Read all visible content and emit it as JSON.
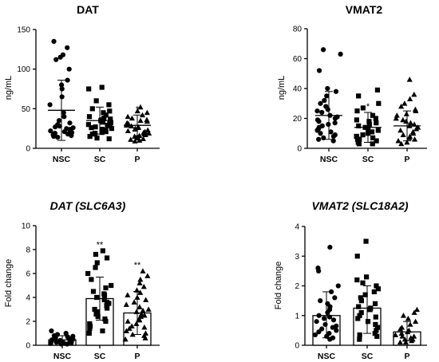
{
  "chart_data": [
    {
      "id": "dat_protein",
      "type": "scatter",
      "title": "DAT",
      "title_italic": false,
      "ylabel": "ng/mL",
      "ylim": [
        0,
        150
      ],
      "yticks": [
        0,
        50,
        100,
        150
      ],
      "categories": [
        "NSC",
        "SC",
        "P"
      ],
      "display": "mean_sd",
      "markers": [
        "circle",
        "square",
        "triangle"
      ],
      "mean": [
        48,
        35,
        29
      ],
      "sd_upper": [
        86,
        52,
        42
      ],
      "sd_lower": [
        10,
        18,
        16
      ],
      "significance": [
        "",
        "",
        "*"
      ],
      "points": [
        [
          135,
          127,
          118,
          115,
          112,
          100,
          86,
          80,
          75,
          65,
          55,
          45,
          40,
          35,
          32,
          30,
          28,
          27,
          26,
          25,
          24,
          23,
          22,
          21,
          20,
          19,
          18,
          17,
          16,
          15,
          14
        ],
        [
          77,
          75,
          60,
          55,
          50,
          47,
          45,
          42,
          40,
          38,
          37,
          36,
          35,
          34,
          33,
          32,
          31,
          30,
          29,
          28,
          27,
          26,
          25,
          24,
          23,
          22,
          21,
          20,
          19,
          18,
          15,
          13,
          12
        ],
        [
          52,
          47,
          45,
          42,
          40,
          38,
          36,
          35,
          34,
          32,
          31,
          30,
          29,
          28,
          27,
          26,
          25,
          24,
          23,
          22,
          21,
          20,
          19,
          18,
          17,
          16,
          15,
          14,
          13,
          12,
          11,
          10,
          9
        ]
      ]
    },
    {
      "id": "vmat2_protein",
      "type": "scatter",
      "title": "VMAT2",
      "title_italic": false,
      "ylabel": "ng/mL",
      "ylim": [
        0,
        80
      ],
      "yticks": [
        0,
        20,
        40,
        60,
        80
      ],
      "categories": [
        "NSC",
        "SC",
        "P"
      ],
      "display": "mean_sd",
      "markers": [
        "circle",
        "square",
        "triangle"
      ],
      "mean": [
        22,
        14,
        15
      ],
      "sd_upper": [
        38,
        24,
        25
      ],
      "sd_lower": [
        6,
        4,
        5
      ],
      "significance": [
        "",
        "*",
        ""
      ],
      "points": [
        [
          66,
          63,
          52,
          40,
          38,
          35,
          32,
          30,
          28,
          26,
          25,
          24,
          22,
          21,
          20,
          19,
          18,
          17,
          16,
          15,
          14,
          13,
          12,
          11,
          10,
          9,
          8,
          7,
          6,
          5
        ],
        [
          39,
          35,
          30,
          27,
          25,
          22,
          20,
          19,
          18,
          17,
          16,
          15,
          14,
          13,
          12,
          11,
          10,
          9,
          8,
          8,
          7,
          6,
          6,
          5,
          4,
          3,
          3
        ],
        [
          46,
          36,
          33,
          30,
          28,
          26,
          25,
          23,
          22,
          20,
          19,
          18,
          17,
          16,
          15,
          14,
          13,
          12,
          11,
          10,
          9,
          8,
          7,
          6,
          5,
          4,
          3
        ]
      ]
    },
    {
      "id": "dat_gene",
      "type": "bar",
      "title": "DAT (SLC6A3)",
      "title_italic": true,
      "ylabel": "Fold change",
      "ylim": [
        0,
        10
      ],
      "yticks": [
        0,
        2,
        4,
        6,
        8,
        10
      ],
      "categories": [
        "NSC",
        "SC",
        "P"
      ],
      "display": "bar_sd",
      "markers": [
        "circle",
        "square",
        "triangle"
      ],
      "mean": [
        0.45,
        3.9,
        2.7
      ],
      "sd_upper": [
        0.8,
        5.7,
        4.5
      ],
      "sd_lower": [
        0.1,
        2.1,
        0.9
      ],
      "significance": [
        "",
        "**",
        "**"
      ],
      "points": [
        [
          1.2,
          1.0,
          0.9,
          0.8,
          0.75,
          0.7,
          0.6,
          0.55,
          0.5,
          0.45,
          0.4,
          0.4,
          0.35,
          0.3,
          0.3,
          0.25,
          0.2,
          0.2,
          0.15,
          0.1,
          0.1
        ],
        [
          7.9,
          7.6,
          7.3,
          6.9,
          6.5,
          6.0,
          5.5,
          5.0,
          4.8,
          4.5,
          4.3,
          4.2,
          4.0,
          3.8,
          3.6,
          3.5,
          3.3,
          3.1,
          3.0,
          2.8,
          2.6,
          2.4,
          2.2,
          2.0,
          1.8,
          1.6,
          1.4,
          1.2,
          1.0
        ],
        [
          6.2,
          5.8,
          5.5,
          5.2,
          4.9,
          4.6,
          4.4,
          4.2,
          4.0,
          3.8,
          3.6,
          3.4,
          3.2,
          3.0,
          2.9,
          2.8,
          2.6,
          2.5,
          2.4,
          2.2,
          2.1,
          2.0,
          1.8,
          1.6,
          1.5,
          1.4,
          1.2,
          1.0,
          0.9,
          0.8,
          0.6,
          0.5
        ]
      ]
    },
    {
      "id": "vmat2_gene",
      "type": "bar",
      "title": "VMAT2 (SLC18A2)",
      "title_italic": true,
      "ylabel": "Fold change",
      "ylim": [
        0,
        4
      ],
      "yticks": [
        0,
        1,
        2,
        3,
        4
      ],
      "categories": [
        "NSC",
        "SC",
        "P"
      ],
      "display": "bar_sd",
      "markers": [
        "circle",
        "square",
        "triangle"
      ],
      "mean": [
        1.0,
        1.25,
        0.45
      ],
      "sd_upper": [
        1.8,
        2.0,
        0.8
      ],
      "sd_lower": [
        0.25,
        0.4,
        0.15
      ],
      "significance": [
        "",
        "",
        ""
      ],
      "points": [
        [
          3.3,
          2.6,
          2.5,
          2.0,
          1.8,
          1.6,
          1.5,
          1.4,
          1.3,
          1.2,
          1.1,
          1.0,
          0.95,
          0.9,
          0.85,
          0.8,
          0.7,
          0.65,
          0.6,
          0.55,
          0.5,
          0.45,
          0.4,
          0.35,
          0.3,
          0.25,
          0.2
        ],
        [
          3.5,
          3.0,
          2.3,
          2.2,
          2.1,
          2.0,
          1.9,
          1.8,
          1.7,
          1.6,
          1.5,
          1.4,
          1.3,
          1.25,
          1.2,
          1.1,
          1.0,
          0.95,
          0.9,
          0.8,
          0.7,
          0.6,
          0.5,
          0.4,
          0.35,
          0.3,
          0.2
        ],
        [
          1.2,
          1.1,
          1.0,
          0.9,
          0.8,
          0.7,
          0.6,
          0.55,
          0.5,
          0.45,
          0.4,
          0.35,
          0.3,
          0.3,
          0.25,
          0.2,
          0.2,
          0.15,
          0.1,
          0.1
        ]
      ]
    }
  ]
}
